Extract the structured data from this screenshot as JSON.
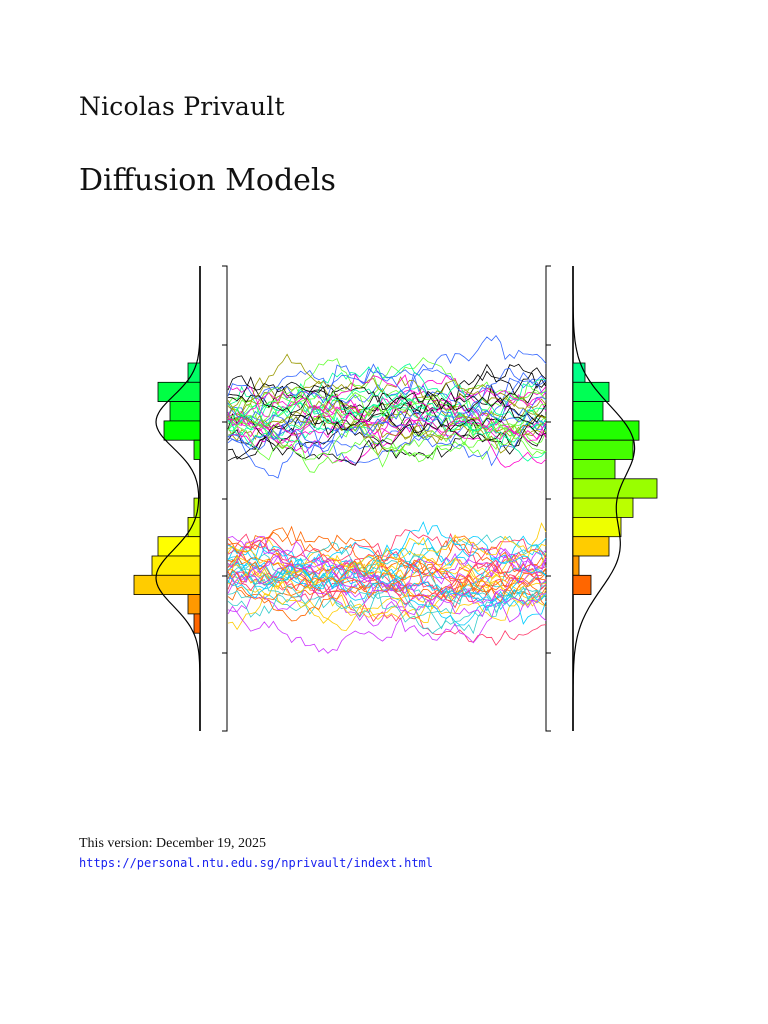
{
  "document": {
    "author": "Nicolas Privault",
    "title": "Diffusion Models",
    "version_line": "This version: December 19, 2025",
    "homepage_url": "https://personal.ntu.edu.sg/nprivault/indext.html"
  },
  "cover_figure": {
    "description_type": "decorative-diffusion-paths",
    "path_count": 80,
    "left_histogram_bins": [
      {
        "count": 0.1,
        "color": "#00ff66"
      },
      {
        "count": 0.35,
        "color": "#00ff44"
      },
      {
        "count": 0.25,
        "color": "#00ff22"
      },
      {
        "count": 0.3,
        "color": "#00ff00"
      },
      {
        "count": 0.05,
        "color": "#22ff00"
      },
      {
        "count": 0.0,
        "color": "#55ff00"
      },
      {
        "count": 0.0,
        "color": "#88ff00"
      },
      {
        "count": 0.05,
        "color": "#bbff00"
      },
      {
        "count": 0.1,
        "color": "#ddff00"
      },
      {
        "count": 0.35,
        "color": "#ffff00"
      },
      {
        "count": 0.4,
        "color": "#ffee00"
      },
      {
        "count": 0.55,
        "color": "#ffcc00"
      },
      {
        "count": 0.1,
        "color": "#ff9900"
      },
      {
        "count": 0.05,
        "color": "#ff6600"
      }
    ],
    "right_histogram_bins": [
      {
        "count": 0.1,
        "color": "#00ff88"
      },
      {
        "count": 0.3,
        "color": "#00ff55"
      },
      {
        "count": 0.25,
        "color": "#00ff33"
      },
      {
        "count": 0.55,
        "color": "#22ff00"
      },
      {
        "count": 0.5,
        "color": "#44ff00"
      },
      {
        "count": 0.35,
        "color": "#66ff00"
      },
      {
        "count": 0.7,
        "color": "#99ff00"
      },
      {
        "count": 0.5,
        "color": "#bbff00"
      },
      {
        "count": 0.4,
        "color": "#eeff00"
      },
      {
        "count": 0.3,
        "color": "#ffcc00"
      },
      {
        "count": 0.05,
        "color": "#ff9900"
      },
      {
        "count": 0.15,
        "color": "#ff6600"
      }
    ]
  }
}
